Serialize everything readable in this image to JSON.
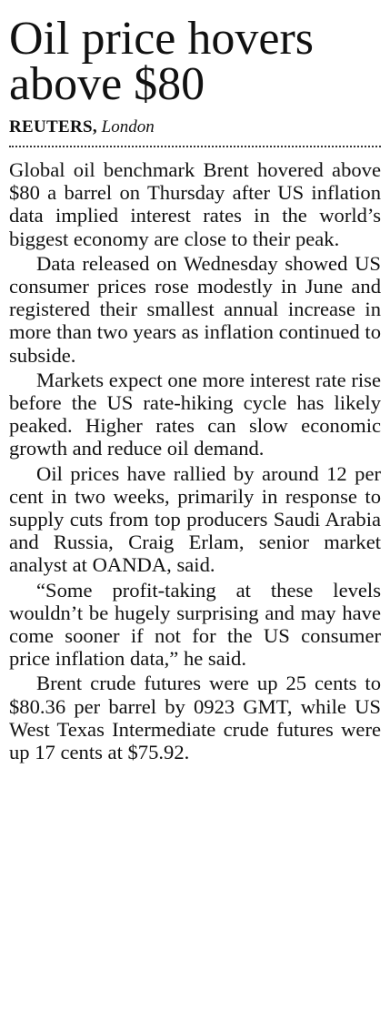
{
  "article": {
    "headline": "Oil price hovers above $80",
    "agency": "REUTERS,",
    "location": "London",
    "paragraphs": [
      "Global oil benchmark Brent hovered above $80 a barrel on Thursday after US inflation data implied interest rates in the world’s biggest economy are close to their peak.",
      "Data released on Wednesday showed US consumer prices rose modestly in June and registered their smallest annual increase in more than two years as inflation continued to subside.",
      "Markets expect one more interest rate rise before the US rate-hiking cycle has likely peaked. Higher rates can slow economic growth and reduce oil demand.",
      "Oil prices have rallied by around 12 per cent in two weeks, primarily in response to supply cuts from top producers Saudi Arabia and Russia, Craig Erlam, senior market analyst at OANDA, said.",
      "“Some profit-taking at these levels wouldn’t be hugely surprising and may have come sooner if not for the US consumer price inflation data,” he said.",
      "Brent crude futures were up 25 cents to $80.36 per barrel by 0923 GMT, while US West Texas Intermediate crude futures were up 17 cents at $75.92."
    ]
  }
}
